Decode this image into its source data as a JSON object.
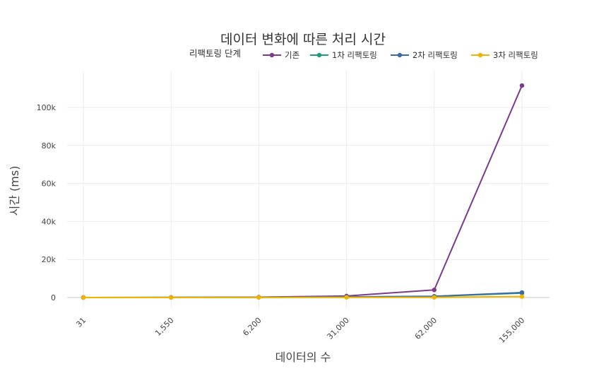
{
  "chart_data": {
    "type": "line",
    "title": "데이터 변화에 따른 처리 시간",
    "xlabel": "데이터의 수",
    "ylabel": "시간 (ms)",
    "legend_title": "리팩토링 단계",
    "legend_placement": "top-right",
    "categories": [
      "31",
      "1,550",
      "6,200",
      "31,000",
      "62,000",
      "155,000"
    ],
    "y_ticks": [
      0,
      20000,
      40000,
      60000,
      80000,
      100000
    ],
    "y_tick_labels": [
      "0",
      "20k",
      "40k",
      "60k",
      "80k",
      "100k"
    ],
    "ylim": [
      -6000,
      120000
    ],
    "grid": true,
    "series": [
      {
        "name": "기존",
        "color": "#7b3a8c",
        "values": [
          20,
          60,
          200,
          800,
          4000,
          111500
        ]
      },
      {
        "name": "1차 리팩토링",
        "color": "#1a9e77",
        "values": [
          10,
          30,
          100,
          300,
          600,
          2300
        ]
      },
      {
        "name": "2차 리팩토링",
        "color": "#3b6aa6",
        "values": [
          12,
          35,
          110,
          320,
          650,
          2600
        ]
      },
      {
        "name": "3차 리팩토링",
        "color": "#f0b400",
        "values": [
          5,
          10,
          40,
          80,
          100,
          500
        ]
      }
    ]
  }
}
